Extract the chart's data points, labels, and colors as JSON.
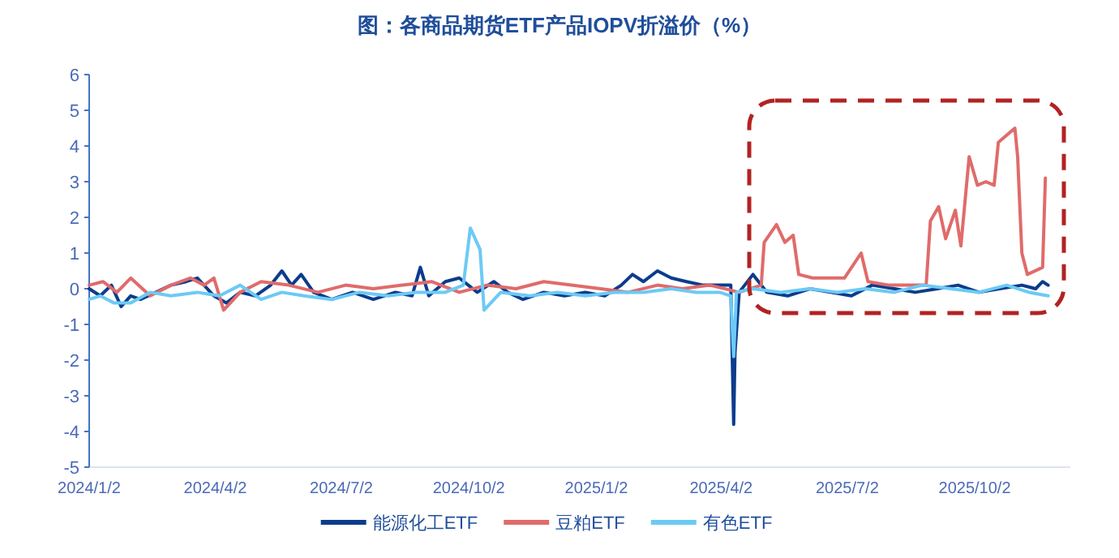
{
  "chart_data": {
    "type": "line",
    "title": "图：各商品期货ETF产品IOPV折溢价（%）",
    "xlim": [
      "2024-01-02",
      "2025-12-10"
    ],
    "xticks": [
      {
        "value": "2024-01-02",
        "label": "2024/1/2"
      },
      {
        "value": "2024-04-02",
        "label": "2024/4/2"
      },
      {
        "value": "2024-07-02",
        "label": "2024/7/2"
      },
      {
        "value": "2024-10-02",
        "label": "2024/10/2"
      },
      {
        "value": "2025-01-02",
        "label": "2025/1/2"
      },
      {
        "value": "2025-04-02",
        "label": "2025/4/2"
      },
      {
        "value": "2025-07-02",
        "label": "2025/7/2"
      },
      {
        "value": "2025-10-02",
        "label": "2025/10/2"
      }
    ],
    "ylim": [
      -5,
      6
    ],
    "yticks": [
      -5,
      -4,
      -3,
      -2,
      -1,
      0,
      1,
      2,
      3,
      4,
      5,
      6
    ],
    "legend": "bottom",
    "series": [
      {
        "name": "能源化工ETF",
        "color": "#0b3c8c",
        "x": [
          "2024-01-02",
          "2024-01-10",
          "2024-01-18",
          "2024-01-25",
          "2024-02-01",
          "2024-02-08",
          "2024-03-01",
          "2024-03-12",
          "2024-03-20",
          "2024-04-01",
          "2024-04-10",
          "2024-04-20",
          "2024-05-01",
          "2024-05-12",
          "2024-05-20",
          "2024-05-27",
          "2024-06-03",
          "2024-06-12",
          "2024-06-25",
          "2024-07-10",
          "2024-07-25",
          "2024-08-10",
          "2024-08-22",
          "2024-08-28",
          "2024-09-03",
          "2024-09-15",
          "2024-09-25",
          "2024-10-08",
          "2024-10-20",
          "2024-10-30",
          "2024-11-10",
          "2024-11-25",
          "2024-12-10",
          "2024-12-25",
          "2025-01-08",
          "2025-01-20",
          "2025-01-28",
          "2025-02-05",
          "2025-02-15",
          "2025-02-25",
          "2025-03-08",
          "2025-03-20",
          "2025-04-01",
          "2025-04-09",
          "2025-04-11",
          "2025-04-12",
          "2025-04-15",
          "2025-04-25",
          "2025-05-05",
          "2025-05-20",
          "2025-06-05",
          "2025-06-20",
          "2025-07-05",
          "2025-07-20",
          "2025-08-05",
          "2025-08-20",
          "2025-09-05",
          "2025-09-20",
          "2025-10-05",
          "2025-10-20",
          "2025-11-05",
          "2025-11-15",
          "2025-11-20",
          "2025-11-24"
        ],
        "values": [
          0,
          -0.2,
          0.1,
          -0.5,
          -0.2,
          -0.3,
          0.1,
          0.2,
          0.3,
          -0.2,
          -0.4,
          -0.1,
          -0.2,
          0.1,
          0.5,
          0.1,
          0.4,
          -0.1,
          -0.3,
          -0.1,
          -0.3,
          -0.1,
          -0.2,
          0.6,
          -0.2,
          0.2,
          0.3,
          -0.1,
          0.2,
          -0.1,
          -0.3,
          -0.1,
          -0.2,
          -0.1,
          -0.2,
          0.1,
          0.4,
          0.2,
          0.5,
          0.3,
          0.2,
          0.1,
          0.1,
          0.1,
          -3.8,
          -1.8,
          -0.1,
          0.4,
          -0.1,
          -0.2,
          0,
          -0.1,
          -0.2,
          0.1,
          0,
          -0.1,
          0,
          0.1,
          -0.1,
          0,
          0.1,
          0,
          0.2,
          0.1
        ]
      },
      {
        "name": "豆粕ETF",
        "color": "#e06b6b",
        "x": [
          "2024-01-02",
          "2024-01-12",
          "2024-01-22",
          "2024-02-01",
          "2024-02-15",
          "2024-03-01",
          "2024-03-15",
          "2024-03-25",
          "2024-04-01",
          "2024-04-08",
          "2024-04-20",
          "2024-05-05",
          "2024-05-25",
          "2024-06-15",
          "2024-07-05",
          "2024-07-25",
          "2024-08-15",
          "2024-09-05",
          "2024-09-25",
          "2024-10-15",
          "2024-11-05",
          "2024-11-25",
          "2024-12-15",
          "2025-01-05",
          "2025-01-25",
          "2025-02-15",
          "2025-03-05",
          "2025-03-25",
          "2025-04-15",
          "2025-05-01",
          "2025-05-03",
          "2025-05-12",
          "2025-05-18",
          "2025-05-24",
          "2025-05-28",
          "2025-06-07",
          "2025-06-30",
          "2025-07-12",
          "2025-07-17",
          "2025-08-01",
          "2025-08-28",
          "2025-08-31",
          "2025-09-06",
          "2025-09-11",
          "2025-09-18",
          "2025-09-22",
          "2025-09-28",
          "2025-10-04",
          "2025-10-10",
          "2025-10-16",
          "2025-10-19",
          "2025-10-25",
          "2025-10-31",
          "2025-11-02",
          "2025-11-05",
          "2025-11-09",
          "2025-11-20",
          "2025-11-22"
        ],
        "values": [
          0.1,
          0.2,
          -0.1,
          0.3,
          -0.2,
          0.1,
          0.3,
          0.1,
          0.3,
          -0.6,
          -0.1,
          0.2,
          0.1,
          -0.1,
          0.1,
          0,
          0.1,
          0.2,
          -0.1,
          0.1,
          0,
          0.2,
          0.1,
          0,
          -0.1,
          0.1,
          0,
          0.1,
          -0.1,
          0.1,
          1.3,
          1.8,
          1.3,
          1.5,
          0.4,
          0.3,
          0.3,
          1.0,
          0.2,
          0.1,
          0.1,
          1.9,
          2.3,
          1.4,
          2.2,
          1.2,
          3.7,
          2.9,
          3.0,
          2.9,
          4.1,
          4.3,
          4.5,
          3.7,
          1.0,
          0.4,
          0.6,
          3.1
        ]
      },
      {
        "name": "有色ETF",
        "color": "#6ccaf5",
        "x": [
          "2024-01-02",
          "2024-01-10",
          "2024-01-20",
          "2024-02-01",
          "2024-02-15",
          "2024-03-01",
          "2024-03-20",
          "2024-04-05",
          "2024-04-20",
          "2024-05-05",
          "2024-05-20",
          "2024-06-05",
          "2024-06-25",
          "2024-07-15",
          "2024-08-05",
          "2024-08-25",
          "2024-09-15",
          "2024-09-28",
          "2024-10-03",
          "2024-10-10",
          "2024-10-13",
          "2024-10-25",
          "2024-11-15",
          "2024-12-05",
          "2024-12-25",
          "2025-01-15",
          "2025-02-05",
          "2025-02-25",
          "2025-03-15",
          "2025-04-01",
          "2025-04-09",
          "2025-04-11",
          "2025-04-13",
          "2025-04-25",
          "2025-05-15",
          "2025-06-05",
          "2025-06-25",
          "2025-07-15",
          "2025-08-05",
          "2025-08-25",
          "2025-09-15",
          "2025-10-05",
          "2025-10-25",
          "2025-11-10",
          "2025-11-24"
        ],
        "values": [
          -0.3,
          -0.2,
          -0.4,
          -0.4,
          -0.1,
          -0.2,
          -0.1,
          -0.2,
          0.1,
          -0.3,
          -0.1,
          -0.2,
          -0.3,
          -0.1,
          -0.2,
          -0.1,
          -0.1,
          0.1,
          1.7,
          1.1,
          -0.6,
          -0.1,
          -0.2,
          -0.1,
          -0.2,
          -0.1,
          -0.1,
          0,
          -0.1,
          -0.1,
          -0.2,
          -1.9,
          -0.1,
          0,
          -0.1,
          0,
          -0.1,
          0,
          -0.1,
          0.1,
          0,
          -0.1,
          0.1,
          -0.1,
          -0.2
        ]
      }
    ]
  }
}
